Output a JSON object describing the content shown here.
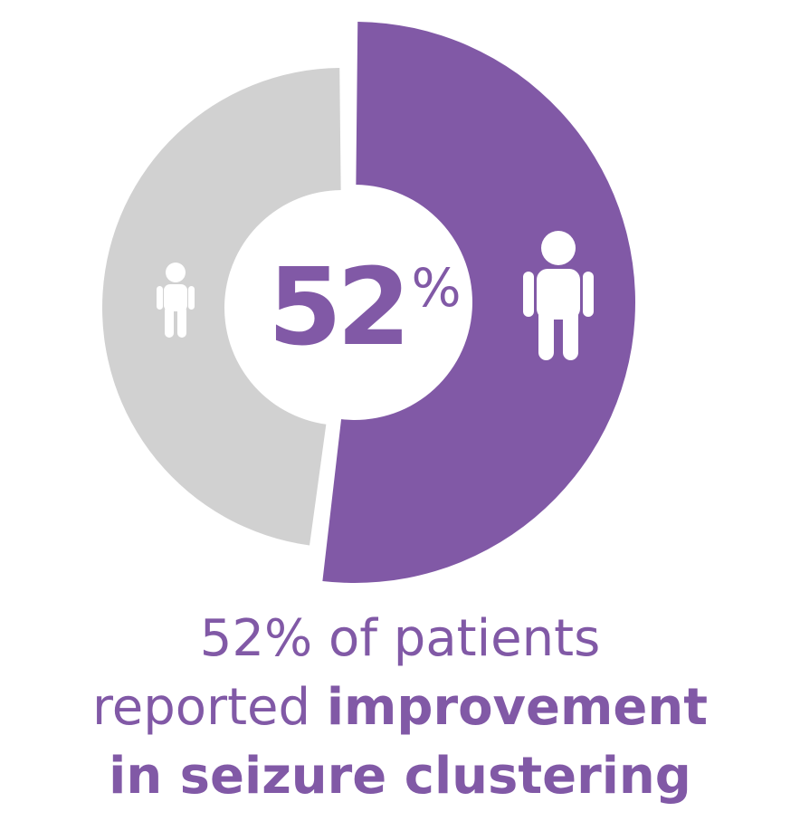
{
  "chart_data": {
    "type": "pie",
    "style": "donut",
    "slices": [
      {
        "label": "improvement in seizure clustering",
        "value": 52,
        "color": "#8159a6",
        "icon": "person-large-icon"
      },
      {
        "label": "",
        "value": 48,
        "color": "#d1d1d1",
        "icon": "person-small-icon"
      }
    ],
    "center_value": "52",
    "center_unit": "%"
  },
  "caption": {
    "line1": "52% of patients",
    "line2_light": "reported ",
    "line2_bold": "improvement",
    "line3_bold": "in seizure clustering"
  }
}
